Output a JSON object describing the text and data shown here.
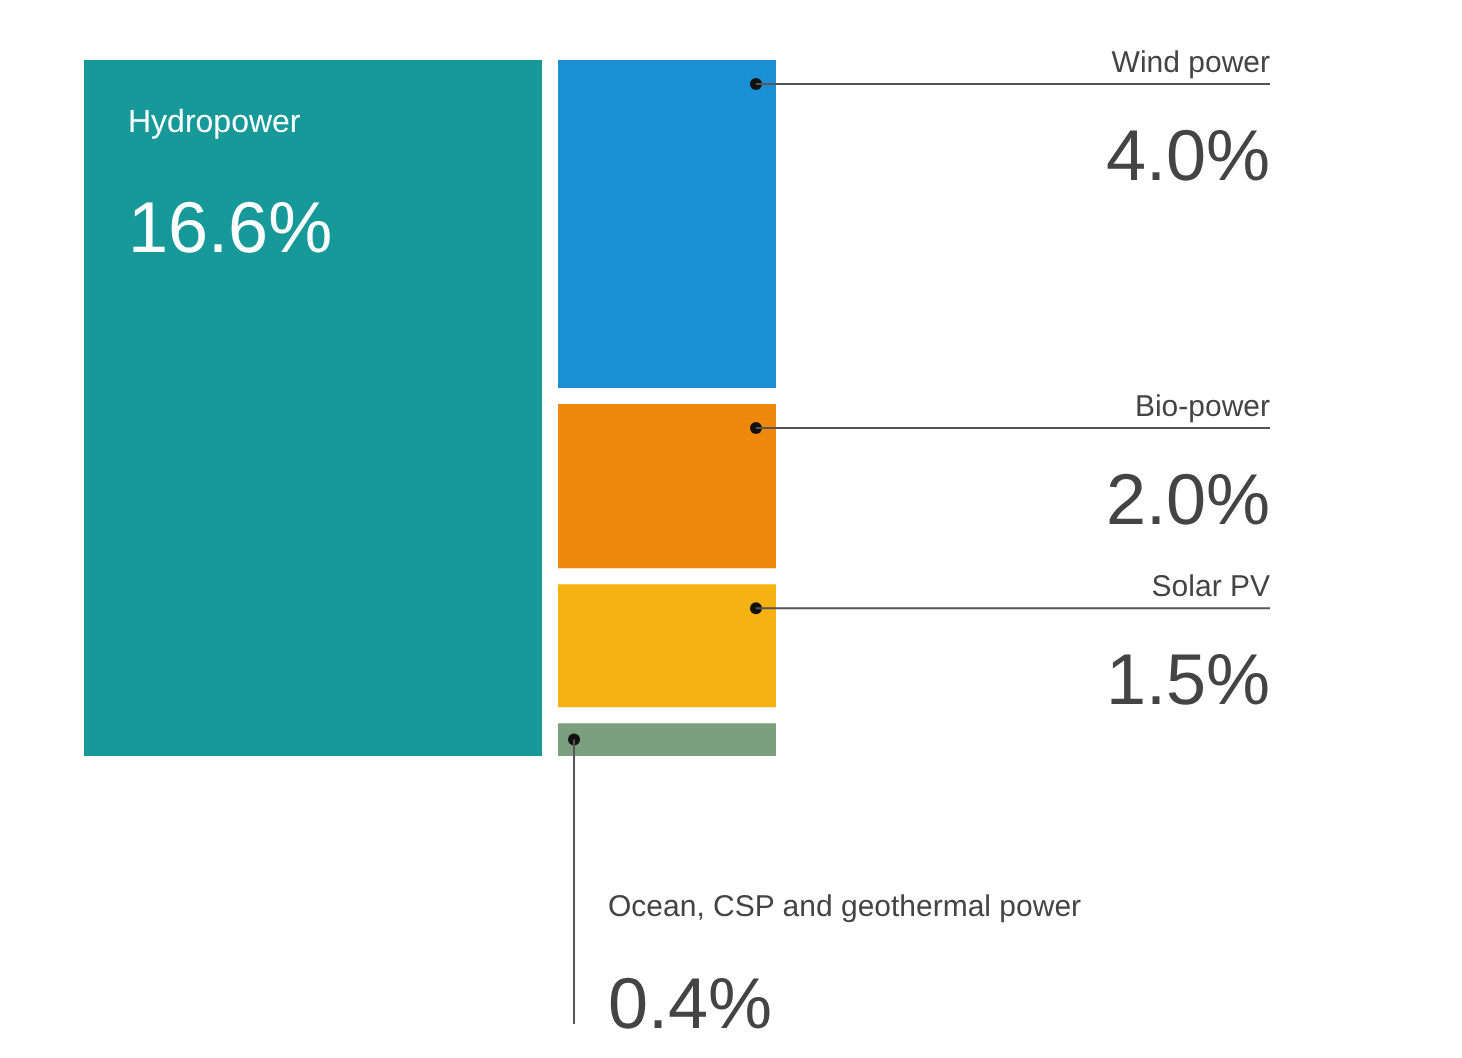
{
  "chart_data": {
    "type": "other",
    "categories": [
      "Hydropower",
      "Wind power",
      "Bio-power",
      "Solar PV",
      "Ocean, CSP and geothermal power"
    ],
    "values": [
      16.6,
      4.0,
      2.0,
      1.5,
      0.4
    ],
    "value_labels": [
      "16.6%",
      "4.0%",
      "2.0%",
      "1.5%",
      "0.4%"
    ],
    "colors": [
      "#17999a",
      "#1a8fd6",
      "#f0880e",
      "#f6b212",
      "#7c9f80"
    ]
  }
}
